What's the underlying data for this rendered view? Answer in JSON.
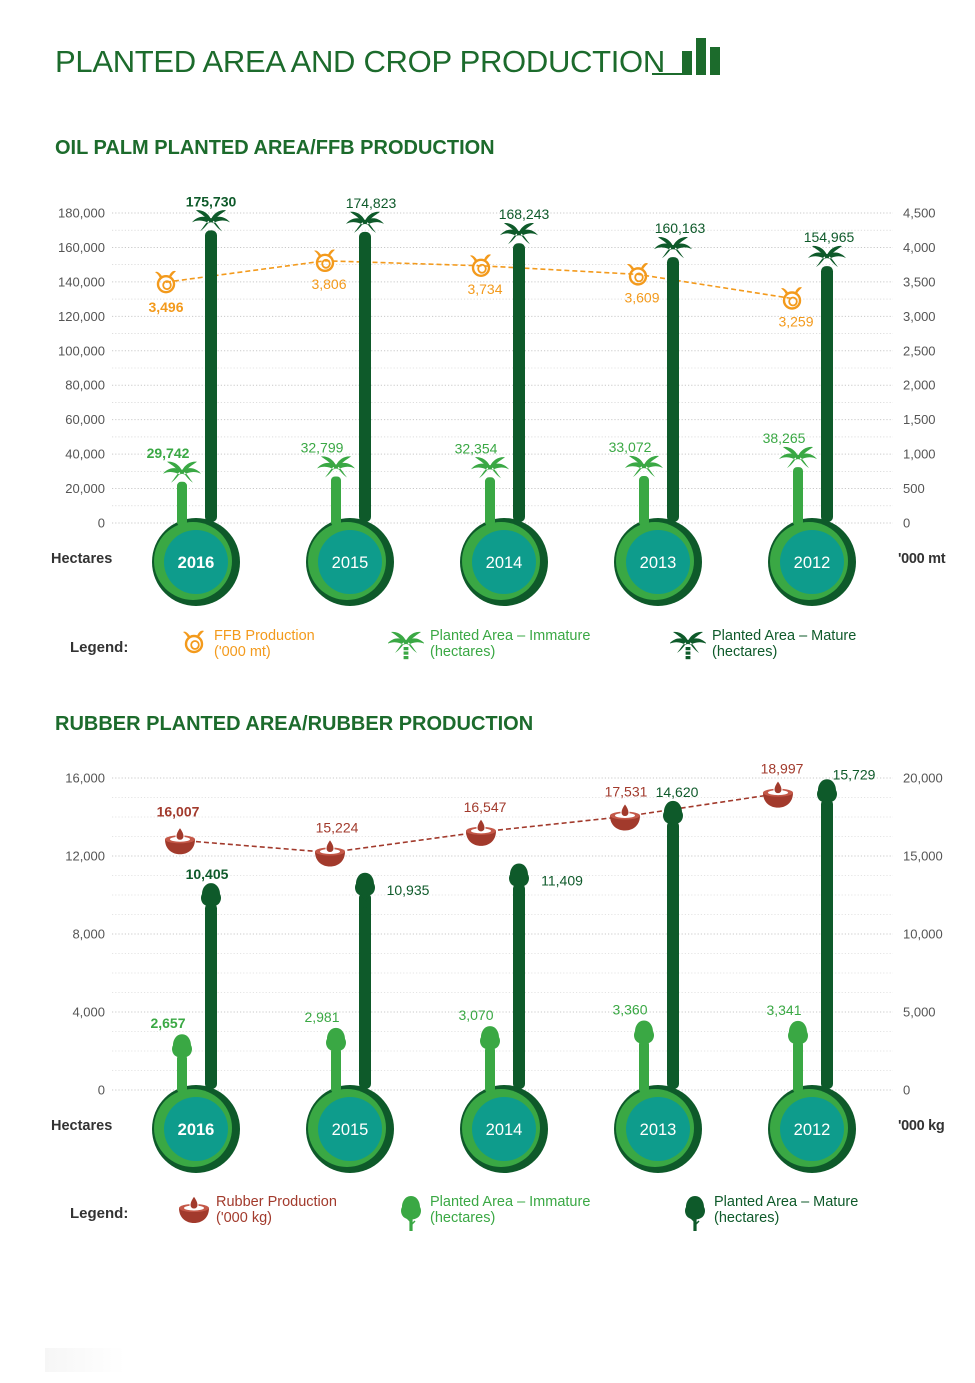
{
  "page": {
    "title": "PLANTED AREA AND CROP PRODUCTION"
  },
  "colors": {
    "dark_green": "#0e5a2a",
    "mid_green": "#1d7a34",
    "light_green": "#3aa844",
    "teal": "#0e9c8c",
    "orange": "#f39a1c",
    "rubber_brown": "#a23a2c",
    "grid": "#c9c9c9"
  },
  "oil_palm": {
    "section_title": "OIL PALM PLANTED AREA/FFB PRODUCTION",
    "left_unit": "Hectares",
    "right_unit": "'000 mt",
    "legend": {
      "label": "Legend:",
      "production": [
        "FFB Production",
        "('000 mt)"
      ],
      "immature": [
        "Planted Area – Immature",
        "(hectares)"
      ],
      "mature": [
        "Planted Area – Mature",
        "(hectares)"
      ]
    }
  },
  "rubber": {
    "section_title": "RUBBER PLANTED AREA/RUBBER PRODUCTION",
    "left_unit": "Hectares",
    "right_unit": "'000 kg",
    "legend": {
      "label": "Legend:",
      "production": [
        "Rubber Production",
        "('000 kg)"
      ],
      "immature": [
        "Planted Area – Immature",
        "(hectares)"
      ],
      "mature": [
        "Planted Area – Mature",
        "(hectares)"
      ]
    }
  },
  "chart_data": [
    {
      "type": "bar",
      "title": "OIL PALM PLANTED AREA/FFB PRODUCTION",
      "categories": [
        "2016",
        "2015",
        "2014",
        "2013",
        "2012"
      ],
      "ylabel": "Hectares",
      "ylabel_right": "'000 mt",
      "ylim": [
        0,
        180000
      ],
      "yticks": [
        0,
        20000,
        40000,
        60000,
        80000,
        100000,
        120000,
        140000,
        160000,
        180000
      ],
      "ytick_labels": [
        "0",
        "20,000",
        "40,000",
        "60,000",
        "80,000",
        "100,000",
        "120,000",
        "140,000",
        "160,000",
        "180,000"
      ],
      "ylim_right": [
        0,
        4500
      ],
      "yticks_right": [
        0,
        500,
        1000,
        1500,
        2000,
        2500,
        3000,
        3500,
        4000,
        4500
      ],
      "ytick_labels_right": [
        "0",
        "500",
        "1,000",
        "1,500",
        "2,000",
        "2,500",
        "3,000",
        "3,500",
        "4,000",
        "4,500"
      ],
      "grid": true,
      "series": [
        {
          "name": "Planted Area – Mature (hectares)",
          "axis": "left",
          "kind": "bar",
          "values": [
            175730,
            174823,
            168243,
            160163,
            154965
          ],
          "labels": [
            "175,730",
            "174,823",
            "168,243",
            "160,163",
            "154,965"
          ]
        },
        {
          "name": "Planted Area – Immature (hectares)",
          "axis": "left",
          "kind": "bar",
          "values": [
            29742,
            32799,
            32354,
            33072,
            38265
          ],
          "labels": [
            "29,742",
            "32,799",
            "32,354",
            "33,072",
            "38,265"
          ]
        },
        {
          "name": "FFB Production ('000 mt)",
          "axis": "right",
          "kind": "line",
          "values": [
            3496,
            3806,
            3734,
            3609,
            3259
          ],
          "labels": [
            "3,496",
            "3,806",
            "3,734",
            "3,609",
            "3,259"
          ]
        }
      ]
    },
    {
      "type": "bar",
      "title": "RUBBER PLANTED AREA/RUBBER PRODUCTION",
      "categories": [
        "2016",
        "2015",
        "2014",
        "2013",
        "2012"
      ],
      "ylabel": "Hectares",
      "ylabel_right": "'000 kg",
      "ylim": [
        0,
        16000
      ],
      "yticks": [
        0,
        4000,
        8000,
        12000,
        16000
      ],
      "ytick_labels": [
        "0",
        "4,000",
        "8,000",
        "12,000",
        "16,000"
      ],
      "ylim_right": [
        0,
        20000
      ],
      "yticks_right": [
        0,
        5000,
        10000,
        15000,
        20000
      ],
      "ytick_labels_right": [
        "0",
        "5,000",
        "10,000",
        "15,000",
        "20,000"
      ],
      "grid": true,
      "series": [
        {
          "name": "Planted Area – Mature (hectares)",
          "axis": "left",
          "kind": "bar",
          "values": [
            10405,
            10935,
            11409,
            14620,
            15729
          ],
          "labels": [
            "10,405",
            "10,935",
            "11,409",
            "14,620",
            "15,729"
          ]
        },
        {
          "name": "Planted Area – Immature (hectares)",
          "axis": "left",
          "kind": "bar",
          "values": [
            2657,
            2981,
            3070,
            3360,
            3341
          ],
          "labels": [
            "2,657",
            "2,981",
            "3,070",
            "3,360",
            "3,341"
          ]
        },
        {
          "name": "Rubber Production ('000 kg)",
          "axis": "right",
          "kind": "line",
          "values": [
            16007,
            15224,
            16547,
            17531,
            18997
          ],
          "labels": [
            "16,007",
            "15,224",
            "16,547",
            "17,531",
            "18,997"
          ]
        }
      ]
    }
  ]
}
